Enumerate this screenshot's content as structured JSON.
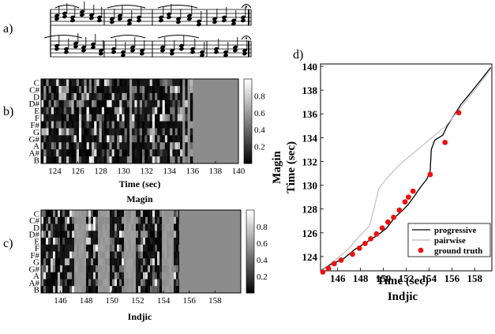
{
  "panels": {
    "a": {
      "label": "a)"
    },
    "b": {
      "label": "b)"
    },
    "c": {
      "label": "c)"
    },
    "d": {
      "label": "d)"
    }
  },
  "chart_data": [
    {
      "type": "heatmap",
      "panel": "b",
      "title": "Magin",
      "xlabel": "Time (sec)",
      "xlim": [
        122.8,
        140
      ],
      "xticks": [
        "124",
        "126",
        "128",
        "130",
        "132",
        "134",
        "136",
        "138",
        "140"
      ],
      "yticks": [
        "C",
        "C#",
        "D",
        "D#",
        "E",
        "F",
        "F#",
        "G",
        "G#",
        "A",
        "A#",
        "B"
      ],
      "data_end": 136,
      "colorbar": {
        "ticks": [
          "0.8",
          "0.6",
          "0.4",
          "0.2"
        ],
        "range": [
          0,
          1
        ]
      },
      "cmap": "gray"
    },
    {
      "type": "heatmap",
      "panel": "c",
      "title": "Indjic",
      "xlabel": "Time (sec)",
      "xlim": [
        144.5,
        160
      ],
      "xticks": [
        "146",
        "148",
        "150",
        "152",
        "154",
        "156",
        "158"
      ],
      "yticks": [
        "C",
        "C#",
        "D",
        "D#",
        "E",
        "F",
        "F#",
        "G",
        "G#",
        "A",
        "A#",
        "B"
      ],
      "data_end": 155.2,
      "colorbar": {
        "ticks": [
          "0.8",
          "0.6",
          "0.4",
          "0.2"
        ],
        "range": [
          0,
          1
        ]
      },
      "cmap": "gray"
    },
    {
      "type": "line",
      "panel": "d",
      "xlabel": "Time (sec)",
      "ylabel": "Time (sec)",
      "title": "Indjic",
      "y_title": "Magin",
      "xlim": [
        144.5,
        159.5
      ],
      "ylim": [
        122.8,
        140.2
      ],
      "xticks": [
        "146",
        "148",
        "150",
        "152",
        "154",
        "156",
        "158"
      ],
      "yticks": [
        "124",
        "126",
        "128",
        "130",
        "132",
        "134",
        "136",
        "138",
        "140"
      ],
      "legend": {
        "position": "bottom-right"
      },
      "series": [
        {
          "name": "progressive",
          "color": "#000000",
          "x": [
            144.6,
            145.5,
            146.5,
            147.5,
            148.5,
            149.5,
            150.3,
            151.0,
            151.6,
            152.2,
            152.8,
            153.3,
            153.8,
            154.1,
            154.2,
            154.5,
            155.2,
            155.6,
            156.2,
            156.8,
            157.5,
            158.5,
            159.4
          ],
          "y": [
            122.9,
            123.4,
            123.8,
            124.6,
            125.2,
            125.8,
            126.4,
            127.3,
            127.8,
            128.4,
            129.2,
            129.9,
            130.5,
            131.2,
            133.0,
            133.8,
            134.2,
            135.0,
            135.9,
            136.8,
            137.6,
            138.8,
            139.9
          ]
        },
        {
          "name": "pairwise",
          "color": "#bbbbbb",
          "x": [
            144.6,
            145.8,
            146.9,
            147.8,
            148.8,
            149.3,
            149.6,
            150.3,
            151.5,
            152.5,
            153.5,
            154.5,
            155.5,
            156.5,
            157.5,
            158.5,
            159.4
          ],
          "y": [
            122.9,
            123.7,
            124.6,
            125.6,
            126.6,
            128.5,
            129.7,
            130.6,
            131.8,
            132.6,
            133.4,
            134.2,
            135.0,
            136.2,
            137.4,
            138.6,
            139.8
          ]
        },
        {
          "name": "ground truth",
          "color": "#ee1111",
          "marker": "circle",
          "x": [
            144.7,
            145.2,
            145.7,
            146.3,
            147.3,
            147.9,
            148.4,
            148.9,
            149.4,
            149.9,
            150.4,
            150.9,
            151.4,
            151.9,
            152.2,
            152.6,
            154.1,
            155.4,
            156.6
          ],
          "y": [
            122.7,
            123.0,
            123.4,
            123.7,
            124.2,
            124.7,
            125.1,
            125.5,
            125.9,
            126.4,
            126.9,
            127.3,
            127.9,
            128.6,
            129.0,
            129.5,
            130.9,
            133.6,
            136.1
          ]
        }
      ]
    }
  ]
}
